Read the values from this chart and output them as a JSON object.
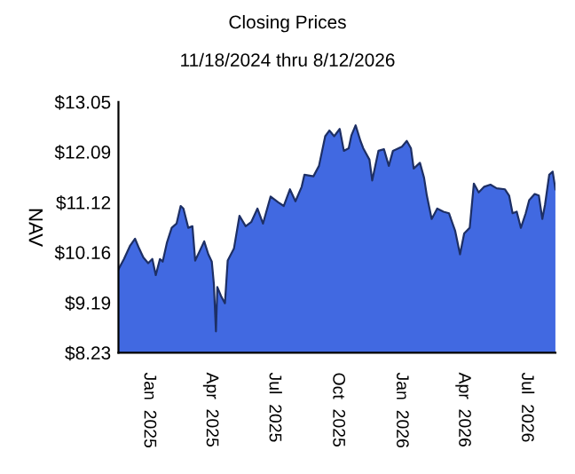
{
  "chart_data": {
    "type": "area",
    "title": "Closing Prices",
    "subtitle": "11/18/2024 thru 8/12/2026",
    "ylabel": "NAV",
    "x": [
      "2024-11-18",
      "2024-11-26",
      "2024-12-05",
      "2024-12-12",
      "2024-12-18",
      "2024-12-24",
      "2024-12-31",
      "2025-01-06",
      "2025-01-11",
      "2025-01-17",
      "2025-01-21",
      "2025-01-27",
      "2025-02-03",
      "2025-02-10",
      "2025-02-16",
      "2025-02-20",
      "2025-02-27",
      "2025-03-05",
      "2025-03-09",
      "2025-03-15",
      "2025-03-22",
      "2025-03-28",
      "2025-04-02",
      "2025-04-05",
      "2025-04-08",
      "2025-04-10",
      "2025-04-16",
      "2025-04-21",
      "2025-04-25",
      "2025-05-04",
      "2025-05-12",
      "2025-05-21",
      "2025-05-29",
      "2025-06-07",
      "2025-06-15",
      "2025-06-26",
      "2025-07-07",
      "2025-07-15",
      "2025-07-24",
      "2025-08-01",
      "2025-08-10",
      "2025-08-14",
      "2025-08-27",
      "2025-09-04",
      "2025-09-13",
      "2025-09-19",
      "2025-09-26",
      "2025-10-04",
      "2025-10-10",
      "2025-10-17",
      "2025-10-21",
      "2025-10-27",
      "2025-11-03",
      "2025-11-07",
      "2025-11-16",
      "2025-11-20",
      "2025-11-29",
      "2025-12-07",
      "2025-12-14",
      "2025-12-20",
      "2026-01-02",
      "2026-01-09",
      "2026-01-15",
      "2026-01-19",
      "2026-01-28",
      "2026-02-03",
      "2026-02-07",
      "2026-02-14",
      "2026-02-22",
      "2026-03-03",
      "2026-03-11",
      "2026-03-20",
      "2026-03-27",
      "2026-04-02",
      "2026-04-10",
      "2026-04-16",
      "2026-04-23",
      "2026-05-01",
      "2026-05-10",
      "2026-05-19",
      "2026-05-31",
      "2026-06-06",
      "2026-06-11",
      "2026-06-17",
      "2026-06-23",
      "2026-06-30",
      "2026-07-05",
      "2026-07-13",
      "2026-07-19",
      "2026-07-24",
      "2026-07-28",
      "2026-08-03",
      "2026-08-08",
      "2026-08-12"
    ],
    "series": [
      {
        "color": "#4169e1",
        "values": [
          9.83,
          10.03,
          10.29,
          10.42,
          10.23,
          10.06,
          9.95,
          10.03,
          9.72,
          10.03,
          9.98,
          10.34,
          10.63,
          10.71,
          11.05,
          11.0,
          10.63,
          10.66,
          10.0,
          10.17,
          10.37,
          10.12,
          9.98,
          9.55,
          8.64,
          9.49,
          9.3,
          9.18,
          10.0,
          10.23,
          10.86,
          10.66,
          10.74,
          11.0,
          10.71,
          11.23,
          11.12,
          11.05,
          11.37,
          11.14,
          11.42,
          11.65,
          11.62,
          11.82,
          12.39,
          12.5,
          12.39,
          12.53,
          12.11,
          12.16,
          12.41,
          12.6,
          12.3,
          12.16,
          11.94,
          11.54,
          12.11,
          12.14,
          11.82,
          12.11,
          12.19,
          12.3,
          12.16,
          11.77,
          11.88,
          11.59,
          11.25,
          10.8,
          11.0,
          10.94,
          10.91,
          10.57,
          10.12,
          10.52,
          10.63,
          11.48,
          11.31,
          11.42,
          11.46,
          11.39,
          11.37,
          11.25,
          10.91,
          10.94,
          10.63,
          10.91,
          11.16,
          11.28,
          11.25,
          10.8,
          11.08,
          11.65,
          11.71,
          11.37
        ]
      }
    ],
    "xlim": [
      "2024-11-18",
      "2026-08-12"
    ],
    "xticks": [
      {
        "value": "2025-01-01",
        "label": "Jan  2025"
      },
      {
        "value": "2025-04-01",
        "label": "Apr  2025"
      },
      {
        "value": "2025-07-01",
        "label": "Jul  2025"
      },
      {
        "value": "2025-10-01",
        "label": "Oct  2025"
      },
      {
        "value": "2026-01-01",
        "label": "Jan  2026"
      },
      {
        "value": "2026-04-01",
        "label": "Apr  2026"
      },
      {
        "value": "2026-07-01",
        "label": "Jul  2026"
      }
    ],
    "ylim": [
      8.23,
      13.05
    ],
    "yticks": [
      {
        "value": 8.23,
        "label": "$8.23"
      },
      {
        "value": 9.19,
        "label": "$9.19"
      },
      {
        "value": 10.16,
        "label": "$10.16"
      },
      {
        "value": 11.12,
        "label": "$11.12"
      },
      {
        "value": 12.09,
        "label": "$12.09"
      },
      {
        "value": 13.05,
        "label": "$13.05"
      }
    ],
    "grid": false
  }
}
